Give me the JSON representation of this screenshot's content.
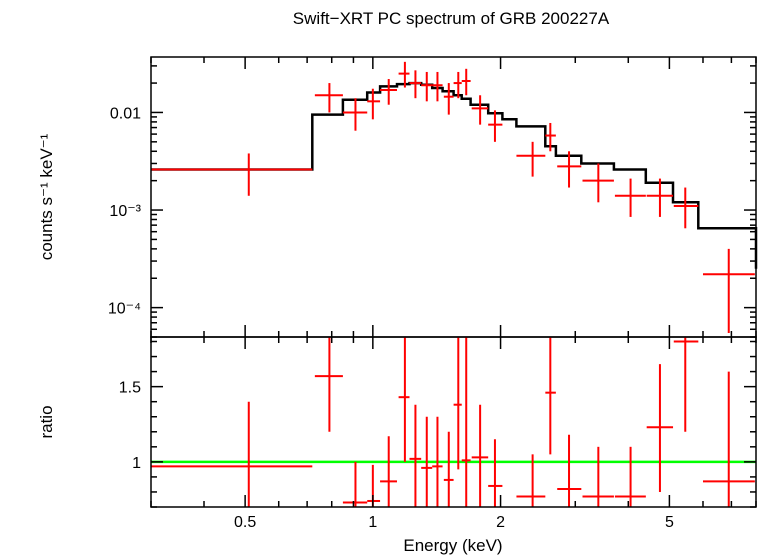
{
  "chart_data": {
    "type": "line",
    "title": "Swift−XRT PC spectrum of GRB 200227A",
    "xlabel": "Energy (keV)",
    "xscale": "log",
    "xlim": [
      0.3,
      8.0
    ],
    "xticks": [
      {
        "value": 0.5,
        "label": "0.5"
      },
      {
        "value": 1,
        "label": "1"
      },
      {
        "value": 2,
        "label": "2"
      },
      {
        "value": 5,
        "label": "5"
      }
    ],
    "colors": {
      "data": "#ff0000",
      "model": "#000000",
      "unity": "#00ff00"
    },
    "panels": [
      {
        "name": "spectrum",
        "ylabel": "counts s⁻¹ keV⁻¹",
        "yscale": "log",
        "ylim": [
          5e-05,
          0.037
        ],
        "yticks": [
          {
            "value": 0.01,
            "label": "0.01"
          },
          {
            "value": 0.001,
            "label": "10⁻³"
          },
          {
            "value": 0.0001,
            "label": "10⁻⁴"
          }
        ],
        "series": [
          {
            "kind": "data",
            "points": [
              {
                "x": 0.51,
                "xlo": 0.3,
                "xhi": 0.72,
                "y": 0.0026,
                "ylo": 0.0014,
                "yhi": 0.0038
              },
              {
                "x": 0.79,
                "xlo": 0.73,
                "xhi": 0.85,
                "y": 0.015,
                "ylo": 0.01,
                "yhi": 0.02
              },
              {
                "x": 0.91,
                "xlo": 0.85,
                "xhi": 0.97,
                "y": 0.01,
                "ylo": 0.0065,
                "yhi": 0.014
              },
              {
                "x": 1.0,
                "xlo": 0.97,
                "xhi": 1.04,
                "y": 0.013,
                "ylo": 0.0085,
                "yhi": 0.0175
              },
              {
                "x": 1.09,
                "xlo": 1.04,
                "xhi": 1.14,
                "y": 0.017,
                "ylo": 0.012,
                "yhi": 0.022
              },
              {
                "x": 1.19,
                "xlo": 1.15,
                "xhi": 1.22,
                "y": 0.025,
                "ylo": 0.018,
                "yhi": 0.033
              },
              {
                "x": 1.26,
                "xlo": 1.22,
                "xhi": 1.3,
                "y": 0.02,
                "ylo": 0.014,
                "yhi": 0.027
              },
              {
                "x": 1.34,
                "xlo": 1.3,
                "xhi": 1.38,
                "y": 0.019,
                "ylo": 0.013,
                "yhi": 0.026
              },
              {
                "x": 1.42,
                "xlo": 1.38,
                "xhi": 1.46,
                "y": 0.019,
                "ylo": 0.013,
                "yhi": 0.026
              },
              {
                "x": 1.51,
                "xlo": 1.47,
                "xhi": 1.55,
                "y": 0.0145,
                "ylo": 0.0095,
                "yhi": 0.02
              },
              {
                "x": 1.59,
                "xlo": 1.55,
                "xhi": 1.62,
                "y": 0.02,
                "ylo": 0.014,
                "yhi": 0.026
              },
              {
                "x": 1.66,
                "xlo": 1.62,
                "xhi": 1.7,
                "y": 0.021,
                "ylo": 0.015,
                "yhi": 0.028
              },
              {
                "x": 1.79,
                "xlo": 1.71,
                "xhi": 1.87,
                "y": 0.011,
                "ylo": 0.0075,
                "yhi": 0.015
              },
              {
                "x": 1.94,
                "xlo": 1.87,
                "xhi": 2.02,
                "y": 0.0075,
                "ylo": 0.005,
                "yhi": 0.0105
              },
              {
                "x": 2.38,
                "xlo": 2.18,
                "xhi": 2.55,
                "y": 0.0036,
                "ylo": 0.0022,
                "yhi": 0.005
              },
              {
                "x": 2.62,
                "xlo": 2.55,
                "xhi": 2.7,
                "y": 0.0058,
                "ylo": 0.004,
                "yhi": 0.0078
              },
              {
                "x": 2.9,
                "xlo": 2.72,
                "xhi": 3.1,
                "y": 0.0028,
                "ylo": 0.0017,
                "yhi": 0.004
              },
              {
                "x": 3.4,
                "xlo": 3.12,
                "xhi": 3.7,
                "y": 0.002,
                "ylo": 0.0012,
                "yhi": 0.003
              },
              {
                "x": 4.05,
                "xlo": 3.72,
                "xhi": 4.4,
                "y": 0.0014,
                "ylo": 0.00085,
                "yhi": 0.0021
              },
              {
                "x": 4.75,
                "xlo": 4.42,
                "xhi": 5.1,
                "y": 0.0014,
                "ylo": 0.00085,
                "yhi": 0.0021
              },
              {
                "x": 5.45,
                "xlo": 5.12,
                "xhi": 5.85,
                "y": 0.0011,
                "ylo": 0.00065,
                "yhi": 0.0017
              },
              {
                "x": 6.9,
                "xlo": 6.0,
                "xhi": 7.95,
                "y": 0.00022,
                "ylo": 5.5e-05,
                "yhi": 0.0004
              }
            ]
          },
          {
            "kind": "model",
            "edges": [
              0.3,
              0.72,
              0.85,
              0.97,
              1.04,
              1.14,
              1.22,
              1.3,
              1.38,
              1.46,
              1.55,
              1.62,
              1.7,
              1.87,
              2.02,
              2.18,
              2.55,
              2.7,
              3.1,
              3.7,
              4.4,
              5.1,
              5.85,
              8.0
            ],
            "values": [
              0.0026,
              0.0095,
              0.0135,
              0.016,
              0.0185,
              0.0195,
              0.02,
              0.0192,
              0.0178,
              0.0165,
              0.015,
              0.0138,
              0.012,
              0.0098,
              0.0085,
              0.0072,
              0.0045,
              0.0036,
              0.003,
              0.0026,
              0.0019,
              0.0012,
              0.00065,
              0.00025
            ]
          }
        ]
      },
      {
        "name": "ratio",
        "ylabel": "ratio",
        "yscale": "linear",
        "ylim": [
          0.7,
          1.83
        ],
        "yticks": [
          {
            "value": 1,
            "label": "1"
          },
          {
            "value": 1.5,
            "label": "1.5"
          }
        ],
        "unity": 1,
        "series": [
          {
            "kind": "data",
            "points": [
              {
                "x": 0.51,
                "xlo": 0.3,
                "xhi": 0.72,
                "y": 0.97,
                "ylo": 0.55,
                "yhi": 1.4
              },
              {
                "x": 0.79,
                "xlo": 0.73,
                "xhi": 0.85,
                "y": 1.57,
                "ylo": 1.2,
                "yhi": 1.83
              },
              {
                "x": 0.91,
                "xlo": 0.85,
                "xhi": 0.97,
                "y": 0.73,
                "ylo": 0.5,
                "yhi": 1.0
              },
              {
                "x": 1.0,
                "xlo": 0.97,
                "xhi": 1.04,
                "y": 0.74,
                "ylo": 0.5,
                "yhi": 0.98
              },
              {
                "x": 1.09,
                "xlo": 1.04,
                "xhi": 1.14,
                "y": 0.87,
                "ylo": 0.6,
                "yhi": 1.17
              },
              {
                "x": 1.19,
                "xlo": 1.15,
                "xhi": 1.22,
                "y": 1.43,
                "ylo": 1.0,
                "yhi": 1.83
              },
              {
                "x": 1.26,
                "xlo": 1.22,
                "xhi": 1.3,
                "y": 1.02,
                "ylo": 0.7,
                "yhi": 1.38
              },
              {
                "x": 1.34,
                "xlo": 1.3,
                "xhi": 1.38,
                "y": 0.96,
                "ylo": 0.65,
                "yhi": 1.3
              },
              {
                "x": 1.42,
                "xlo": 1.38,
                "xhi": 1.46,
                "y": 0.97,
                "ylo": 0.65,
                "yhi": 1.3
              },
              {
                "x": 1.51,
                "xlo": 1.47,
                "xhi": 1.55,
                "y": 0.88,
                "ylo": 0.6,
                "yhi": 1.2
              },
              {
                "x": 1.59,
                "xlo": 1.55,
                "xhi": 1.62,
                "y": 1.38,
                "ylo": 0.95,
                "yhi": 1.83
              },
              {
                "x": 1.66,
                "xlo": 1.62,
                "xhi": 1.7,
                "y": 1.01,
                "ylo": 0.7,
                "yhi": 1.83
              },
              {
                "x": 1.79,
                "xlo": 1.71,
                "xhi": 1.87,
                "y": 1.03,
                "ylo": 0.7,
                "yhi": 1.38
              },
              {
                "x": 1.94,
                "xlo": 1.87,
                "xhi": 2.02,
                "y": 0.84,
                "ylo": 0.55,
                "yhi": 1.15
              },
              {
                "x": 2.38,
                "xlo": 2.18,
                "xhi": 2.55,
                "y": 0.77,
                "ylo": 0.5,
                "yhi": 1.05
              },
              {
                "x": 2.62,
                "xlo": 2.55,
                "xhi": 2.7,
                "y": 1.46,
                "ylo": 1.05,
                "yhi": 1.83
              },
              {
                "x": 2.9,
                "xlo": 2.72,
                "xhi": 3.1,
                "y": 0.82,
                "ylo": 0.55,
                "yhi": 1.18
              },
              {
                "x": 3.4,
                "xlo": 3.12,
                "xhi": 3.7,
                "y": 0.77,
                "ylo": 0.5,
                "yhi": 1.1
              },
              {
                "x": 4.05,
                "xlo": 3.72,
                "xhi": 4.4,
                "y": 0.77,
                "ylo": 0.5,
                "yhi": 1.1
              },
              {
                "x": 4.75,
                "xlo": 4.42,
                "xhi": 5.1,
                "y": 1.23,
                "ylo": 0.8,
                "yhi": 1.65
              },
              {
                "x": 5.45,
                "xlo": 5.12,
                "xhi": 5.85,
                "y": 1.8,
                "ylo": 1.2,
                "yhi": 1.83
              },
              {
                "x": 6.9,
                "xlo": 6.0,
                "xhi": 7.95,
                "y": 0.87,
                "ylo": 0.2,
                "yhi": 1.6
              }
            ]
          }
        ]
      }
    ]
  }
}
